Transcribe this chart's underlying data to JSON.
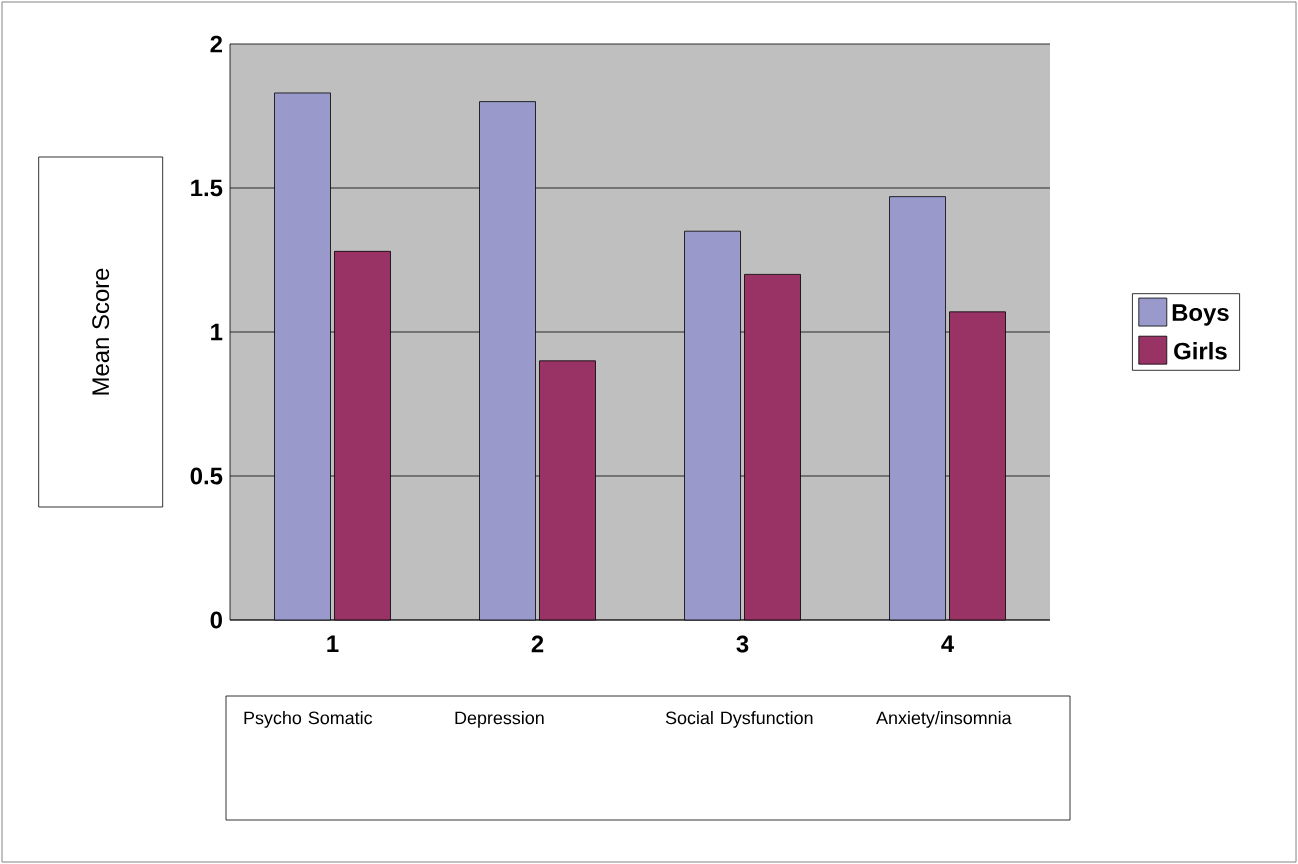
{
  "chart_data": {
    "type": "bar",
    "ylabel": "Mean Score",
    "categories": [
      "1",
      "2",
      "3",
      "4"
    ],
    "series": [
      {
        "name": "Boys",
        "color": "#9999cc",
        "values": [
          1.83,
          1.8,
          1.35,
          1.47
        ]
      },
      {
        "name": "Girls",
        "color": "#993366",
        "values": [
          1.28,
          0.9,
          1.2,
          1.07
        ]
      }
    ],
    "ylim": [
      0,
      2
    ],
    "yticks": [
      0,
      0.5,
      1,
      1.5,
      2
    ],
    "grid": "y",
    "legend": "right",
    "annotations": [
      "Psycho Somatic",
      "Depression",
      "Social Dysfunction",
      "Anxiety/insomnia"
    ]
  }
}
